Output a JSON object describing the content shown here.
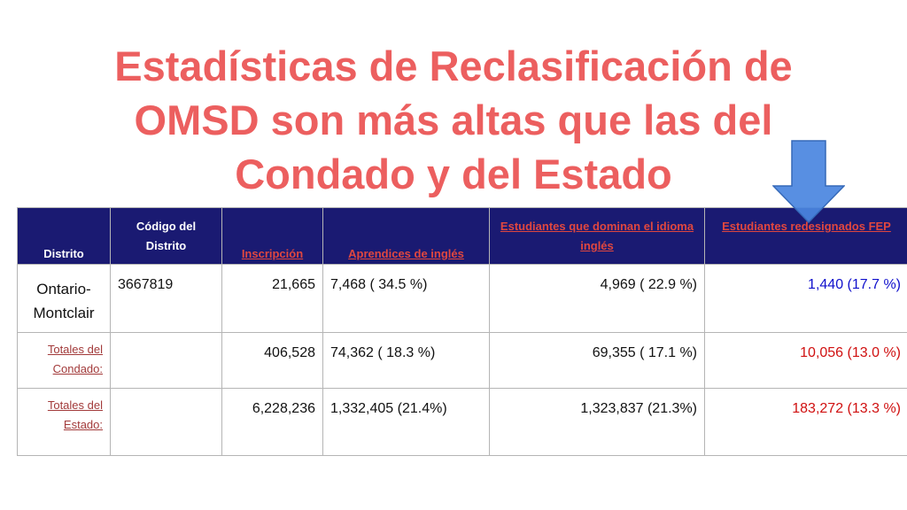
{
  "title": {
    "line1": "Estadísticas de Reclasificación de",
    "line2": "OMSD son más altas que las del",
    "line3": "Condado y del Estado"
  },
  "table": {
    "headers": {
      "distrito": "Distrito",
      "codigo": "Código del Distrito",
      "inscripcion": "Inscripción",
      "aprendices": "Aprendices de inglés",
      "dominan": "Estudiantes que dominan el idioma inglés",
      "redesignados": "Estudiantes redesignados FEP"
    },
    "rows": [
      {
        "distrito": "Ontario-Montclair",
        "codigo": "3667819",
        "inscripcion": "21,665",
        "aprendices": "7,468 ( 34.5 %)",
        "dominan": "4,969 ( 22.9 %)",
        "redesignados": "1,440 (17.7 %)"
      },
      {
        "distrito": "Totales del Condado:",
        "codigo": "",
        "inscripcion": "406,528",
        "aprendices": "74,362 ( 18.3 %)",
        "dominan": "69,355 ( 17.1 %)",
        "redesignados": "10,056 (13.0 %)"
      },
      {
        "distrito": "Totales del Estado:",
        "codigo": "",
        "inscripcion": "6,228,236",
        "aprendices": "1,332,405 (21.4%)",
        "dominan": "1,323,837 (21.3%)",
        "redesignados": "183,272 (13.3 %)"
      }
    ]
  },
  "colors": {
    "title": "#ec5f5f",
    "header_bg": "#1a1a72",
    "arrow": "#4a86e0",
    "highlight_blue": "#1010cc",
    "highlight_red": "#d01010"
  },
  "icons": {
    "arrow": "down-arrow-icon"
  }
}
